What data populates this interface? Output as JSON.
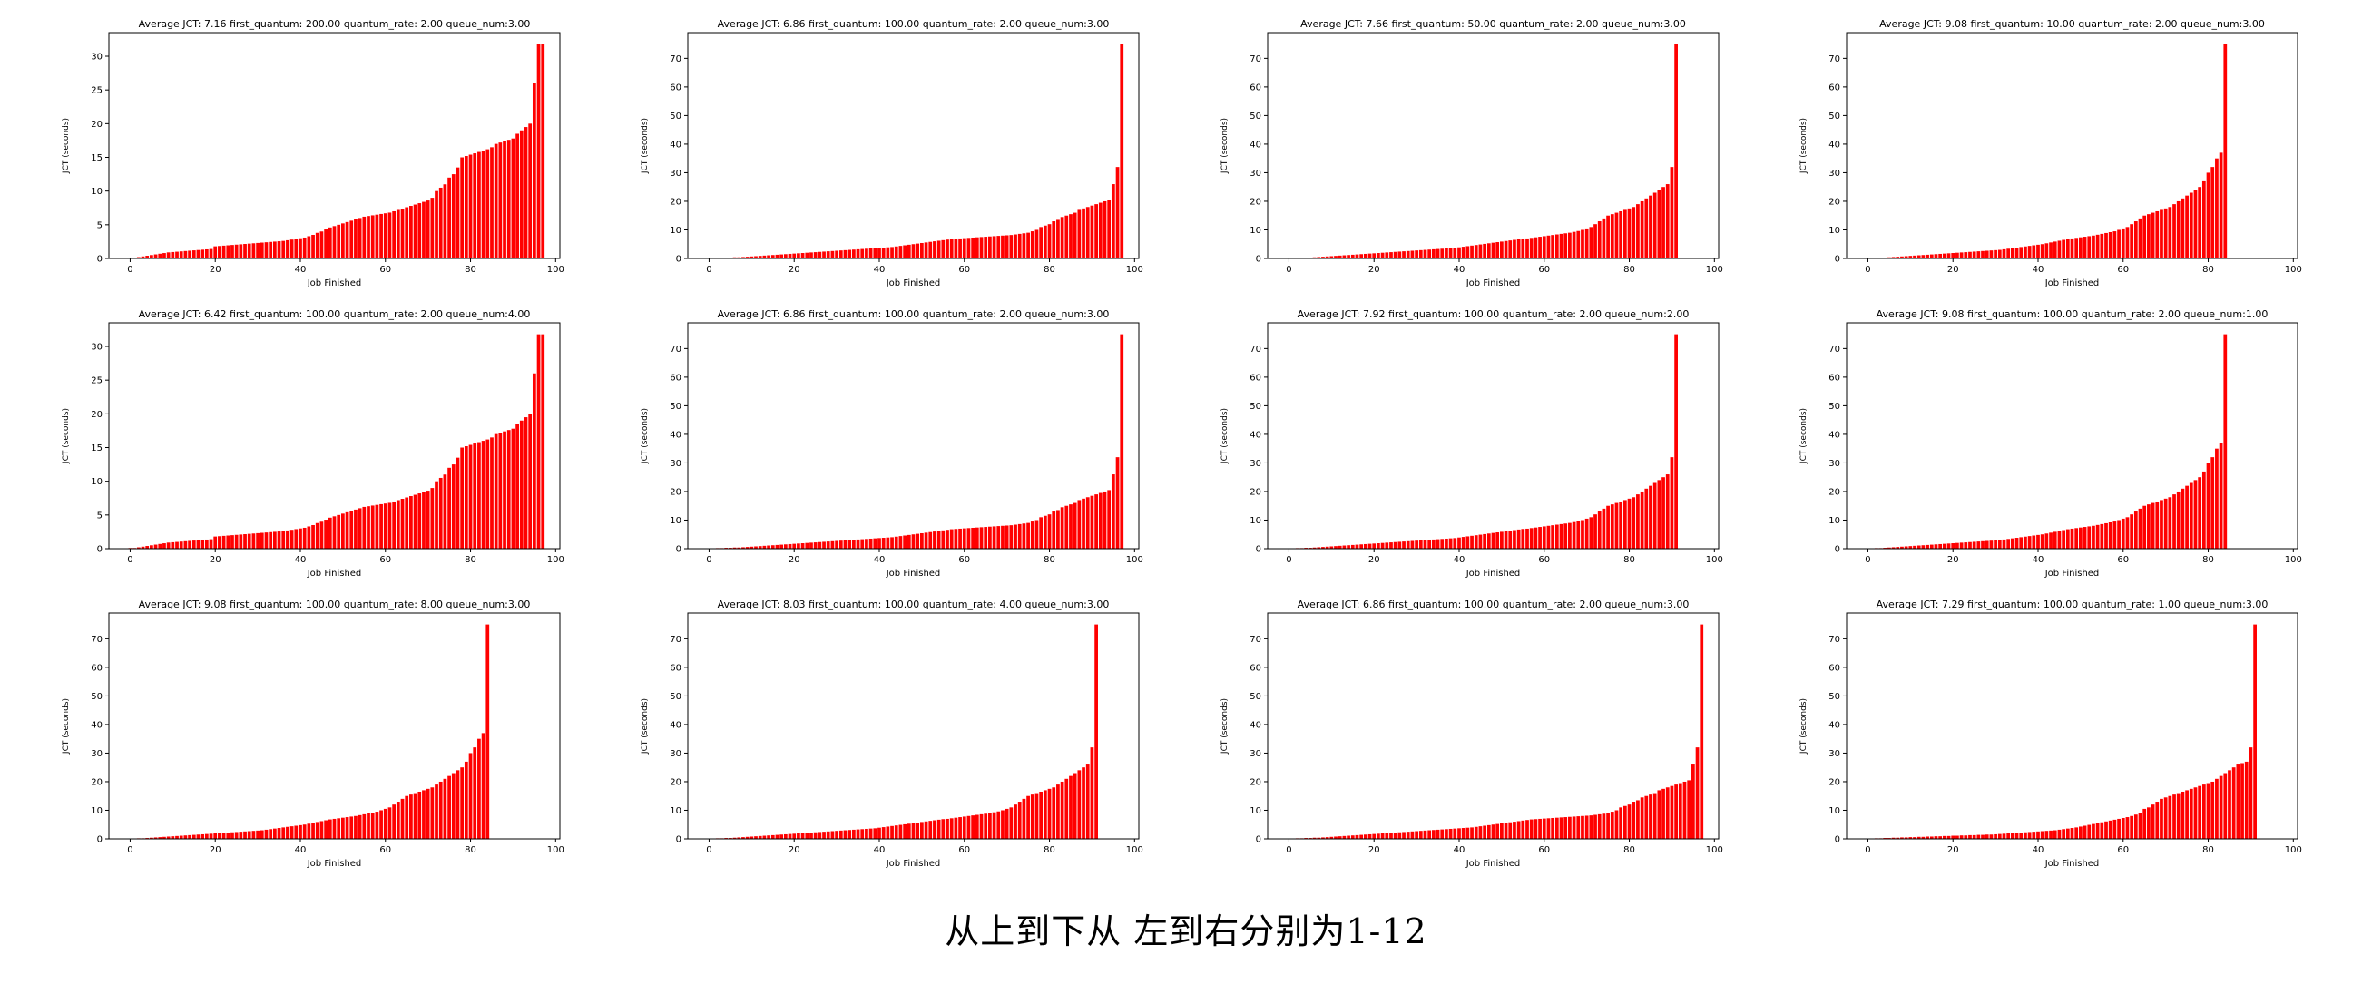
{
  "caption": "从上到下从 左到右分别为1-12",
  "colors": {
    "bar": "#ff0000",
    "axes": "#000000",
    "background": "#ffffff"
  },
  "chart_data": [
    {
      "type": "bar",
      "title": "Average JCT: 7.16 first_quantum: 200.00 quantum_rate: 2.00 queue_num:3.00",
      "xlabel": "Job Finished",
      "ylabel": "JCT (seconds)",
      "xlim": [
        -5,
        101
      ],
      "ylim": [
        0,
        33.5
      ],
      "yticks": [
        0,
        5,
        10,
        15,
        20,
        25,
        30
      ],
      "xticks": [
        0,
        20,
        40,
        60,
        80,
        100
      ],
      "profile": "A"
    },
    {
      "type": "bar",
      "title": "Average JCT: 6.86 first_quantum: 100.00 quantum_rate: 2.00 queue_num:3.00",
      "xlabel": "Job Finished",
      "ylabel": "JCT (seconds)",
      "xlim": [
        -5,
        101
      ],
      "ylim": [
        0,
        79
      ],
      "yticks": [
        0,
        10,
        20,
        30,
        40,
        50,
        60,
        70
      ],
      "xticks": [
        0,
        20,
        40,
        60,
        80,
        100
      ],
      "profile": "B"
    },
    {
      "type": "bar",
      "title": "Average JCT: 7.66 first_quantum: 50.00 quantum_rate: 2.00 queue_num:3.00",
      "xlabel": "Job Finished",
      "ylabel": "JCT (seconds)",
      "xlim": [
        -5,
        101
      ],
      "ylim": [
        0,
        79
      ],
      "yticks": [
        0,
        10,
        20,
        30,
        40,
        50,
        60,
        70
      ],
      "xticks": [
        0,
        20,
        40,
        60,
        80,
        100
      ],
      "profile": "C"
    },
    {
      "type": "bar",
      "title": "Average JCT: 9.08 first_quantum: 10.00 quantum_rate: 2.00 queue_num:3.00",
      "xlabel": "Job Finished",
      "ylabel": "JCT (seconds)",
      "xlim": [
        -5,
        101
      ],
      "ylim": [
        0,
        79
      ],
      "yticks": [
        0,
        10,
        20,
        30,
        40,
        50,
        60,
        70
      ],
      "xticks": [
        0,
        20,
        40,
        60,
        80,
        100
      ],
      "profile": "D"
    },
    {
      "type": "bar",
      "title": "Average JCT: 6.42 first_quantum: 100.00 quantum_rate: 2.00 queue_num:4.00",
      "xlabel": "Job Finished",
      "ylabel": "JCT (seconds)",
      "xlim": [
        -5,
        101
      ],
      "ylim": [
        0,
        33.5
      ],
      "yticks": [
        0,
        5,
        10,
        15,
        20,
        25,
        30
      ],
      "xticks": [
        0,
        20,
        40,
        60,
        80,
        100
      ],
      "profile": "A"
    },
    {
      "type": "bar",
      "title": "Average JCT: 6.86 first_quantum: 100.00 quantum_rate: 2.00 queue_num:3.00",
      "xlabel": "Job Finished",
      "ylabel": "JCT (seconds)",
      "xlim": [
        -5,
        101
      ],
      "ylim": [
        0,
        79
      ],
      "yticks": [
        0,
        10,
        20,
        30,
        40,
        50,
        60,
        70
      ],
      "xticks": [
        0,
        20,
        40,
        60,
        80,
        100
      ],
      "profile": "B"
    },
    {
      "type": "bar",
      "title": "Average JCT: 7.92 first_quantum: 100.00 quantum_rate: 2.00 queue_num:2.00",
      "xlabel": "Job Finished",
      "ylabel": "JCT (seconds)",
      "xlim": [
        -5,
        101
      ],
      "ylim": [
        0,
        79
      ],
      "yticks": [
        0,
        10,
        20,
        30,
        40,
        50,
        60,
        70
      ],
      "xticks": [
        0,
        20,
        40,
        60,
        80,
        100
      ],
      "profile": "C"
    },
    {
      "type": "bar",
      "title": "Average JCT: 9.08 first_quantum: 100.00 quantum_rate: 2.00 queue_num:1.00",
      "xlabel": "Job Finished",
      "ylabel": "JCT (seconds)",
      "xlim": [
        -5,
        101
      ],
      "ylim": [
        0,
        79
      ],
      "yticks": [
        0,
        10,
        20,
        30,
        40,
        50,
        60,
        70
      ],
      "xticks": [
        0,
        20,
        40,
        60,
        80,
        100
      ],
      "profile": "D"
    },
    {
      "type": "bar",
      "title": "Average JCT: 9.08 first_quantum: 100.00 quantum_rate: 8.00 queue_num:3.00",
      "xlabel": "Job Finished",
      "ylabel": "JCT (seconds)",
      "xlim": [
        -5,
        101
      ],
      "ylim": [
        0,
        79
      ],
      "yticks": [
        0,
        10,
        20,
        30,
        40,
        50,
        60,
        70
      ],
      "xticks": [
        0,
        20,
        40,
        60,
        80,
        100
      ],
      "profile": "D"
    },
    {
      "type": "bar",
      "title": "Average JCT: 8.03 first_quantum: 100.00 quantum_rate: 4.00 queue_num:3.00",
      "xlabel": "Job Finished",
      "ylabel": "JCT (seconds)",
      "xlim": [
        -5,
        101
      ],
      "ylim": [
        0,
        79
      ],
      "yticks": [
        0,
        10,
        20,
        30,
        40,
        50,
        60,
        70
      ],
      "xticks": [
        0,
        20,
        40,
        60,
        80,
        100
      ],
      "profile": "C"
    },
    {
      "type": "bar",
      "title": "Average JCT: 6.86 first_quantum: 100.00 quantum_rate: 2.00 queue_num:3.00",
      "xlabel": "Job Finished",
      "ylabel": "JCT (seconds)",
      "xlim": [
        -5,
        101
      ],
      "ylim": [
        0,
        79
      ],
      "yticks": [
        0,
        10,
        20,
        30,
        40,
        50,
        60,
        70
      ],
      "xticks": [
        0,
        20,
        40,
        60,
        80,
        100
      ],
      "profile": "B"
    },
    {
      "type": "bar",
      "title": "Average JCT: 7.29 first_quantum: 100.00 quantum_rate: 1.00 queue_num:3.00",
      "xlabel": "Job Finished",
      "ylabel": "JCT (seconds)",
      "xlim": [
        -5,
        101
      ],
      "ylim": [
        0,
        79
      ],
      "yticks": [
        0,
        10,
        20,
        30,
        40,
        50,
        60,
        70
      ],
      "xticks": [
        0,
        20,
        40,
        60,
        80,
        100
      ],
      "profile": "E"
    }
  ],
  "profiles": {
    "A": [
      0.1,
      0.1,
      0.2,
      0.3,
      0.4,
      0.5,
      0.6,
      0.7,
      0.8,
      0.9,
      0.95,
      1.0,
      1.05,
      1.1,
      1.15,
      1.2,
      1.25,
      1.3,
      1.35,
      1.4,
      1.8,
      1.85,
      1.9,
      1.95,
      2.0,
      2.05,
      2.1,
      2.15,
      2.2,
      2.25,
      2.3,
      2.35,
      2.4,
      2.45,
      2.5,
      2.55,
      2.6,
      2.7,
      2.8,
      2.9,
      3.0,
      3.1,
      3.3,
      3.5,
      3.8,
      4.0,
      4.3,
      4.6,
      4.8,
      5.0,
      5.2,
      5.4,
      5.6,
      5.8,
      6.0,
      6.2,
      6.3,
      6.4,
      6.5,
      6.6,
      6.7,
      6.8,
      7.0,
      7.2,
      7.4,
      7.6,
      7.8,
      8.0,
      8.2,
      8.4,
      8.6,
      9.0,
      10.0,
      10.5,
      11.0,
      12.0,
      12.5,
      13.5,
      15.0,
      15.2,
      15.4,
      15.6,
      15.8,
      16.0,
      16.2,
      16.5,
      17.0,
      17.2,
      17.4,
      17.6,
      17.8,
      18.5,
      19.0,
      19.5,
      20.0,
      26.0,
      31.8,
      31.8
    ],
    "B": [
      0.1,
      0.1,
      0.2,
      0.2,
      0.3,
      0.3,
      0.4,
      0.4,
      0.5,
      0.6,
      0.7,
      0.8,
      0.9,
      1.0,
      1.1,
      1.2,
      1.3,
      1.4,
      1.5,
      1.6,
      1.7,
      1.8,
      1.9,
      2.0,
      2.1,
      2.2,
      2.3,
      2.4,
      2.5,
      2.6,
      2.7,
      2.8,
      2.9,
      3.0,
      3.1,
      3.2,
      3.3,
      3.4,
      3.5,
      3.6,
      3.7,
      3.8,
      3.9,
      4.0,
      4.2,
      4.4,
      4.6,
      4.8,
      5.0,
      5.2,
      5.4,
      5.6,
      5.8,
      6.0,
      6.2,
      6.4,
      6.6,
      6.8,
      6.9,
      7.0,
      7.1,
      7.2,
      7.3,
      7.4,
      7.5,
      7.6,
      7.7,
      7.8,
      7.9,
      8.0,
      8.1,
      8.2,
      8.4,
      8.6,
      8.8,
      9.0,
      9.5,
      10.0,
      11.0,
      11.5,
      12.0,
      13.0,
      13.5,
      14.5,
      15.0,
      15.5,
      16.0,
      17.0,
      17.5,
      18.0,
      18.5,
      19.0,
      19.5,
      20.0,
      20.5,
      26.0,
      32.0,
      75.0
    ],
    "C": [
      0.1,
      0.1,
      0.2,
      0.2,
      0.3,
      0.3,
      0.4,
      0.5,
      0.6,
      0.7,
      0.8,
      0.9,
      1.0,
      1.1,
      1.2,
      1.3,
      1.4,
      1.5,
      1.6,
      1.7,
      1.8,
      1.9,
      2.0,
      2.1,
      2.2,
      2.3,
      2.4,
      2.5,
      2.6,
      2.7,
      2.8,
      2.9,
      3.0,
      3.1,
      3.2,
      3.3,
      3.4,
      3.5,
      3.6,
      3.7,
      3.9,
      4.1,
      4.3,
      4.5,
      4.7,
      4.9,
      5.1,
      5.3,
      5.5,
      5.7,
      5.9,
      6.1,
      6.3,
      6.5,
      6.7,
      6.9,
      7.0,
      7.2,
      7.4,
      7.6,
      7.8,
      8.0,
      8.2,
      8.4,
      8.6,
      8.8,
      9.0,
      9.3,
      9.6,
      10.0,
      10.5,
      11.0,
      12.0,
      13.0,
      14.0,
      15.0,
      15.5,
      16.0,
      16.5,
      17.0,
      17.5,
      18.0,
      19.0,
      20.0,
      21.0,
      22.0,
      23.0,
      24.0,
      25.0,
      26.0,
      32.0,
      75.0
    ],
    "D": [
      0.1,
      0.1,
      0.2,
      0.2,
      0.3,
      0.4,
      0.5,
      0.6,
      0.7,
      0.8,
      0.9,
      1.0,
      1.1,
      1.2,
      1.3,
      1.4,
      1.5,
      1.6,
      1.7,
      1.8,
      1.9,
      2.0,
      2.1,
      2.2,
      2.3,
      2.4,
      2.5,
      2.6,
      2.7,
      2.8,
      2.9,
      3.0,
      3.2,
      3.4,
      3.6,
      3.8,
      4.0,
      4.2,
      4.4,
      4.6,
      4.8,
      5.0,
      5.3,
      5.6,
      5.9,
      6.2,
      6.5,
      6.8,
      7.0,
      7.2,
      7.4,
      7.6,
      7.8,
      8.0,
      8.3,
      8.6,
      8.9,
      9.2,
      9.5,
      10.0,
      10.5,
      11.0,
      12.0,
      13.0,
      14.0,
      15.0,
      15.5,
      16.0,
      16.5,
      17.0,
      17.5,
      18.0,
      19.0,
      20.0,
      21.0,
      22.0,
      23.0,
      24.0,
      25.0,
      27.0,
      30.0,
      32.0,
      35.0,
      37.0,
      75.0
    ],
    "E": [
      0.1,
      0.1,
      0.2,
      0.2,
      0.3,
      0.3,
      0.4,
      0.4,
      0.5,
      0.5,
      0.6,
      0.6,
      0.7,
      0.7,
      0.8,
      0.8,
      0.9,
      0.9,
      1.0,
      1.0,
      1.1,
      1.1,
      1.2,
      1.2,
      1.3,
      1.3,
      1.4,
      1.4,
      1.5,
      1.5,
      1.6,
      1.7,
      1.8,
      1.9,
      2.0,
      2.1,
      2.2,
      2.3,
      2.4,
      2.5,
      2.6,
      2.7,
      2.8,
      2.9,
      3.0,
      3.2,
      3.4,
      3.6,
      3.8,
      4.0,
      4.3,
      4.6,
      4.9,
      5.2,
      5.5,
      5.8,
      6.1,
      6.4,
      6.7,
      7.0,
      7.3,
      7.6,
      8.0,
      8.5,
      9.0,
      10.5,
      11.0,
      12.0,
      13.0,
      14.0,
      14.5,
      15.0,
      15.5,
      16.0,
      16.5,
      17.0,
      17.5,
      18.0,
      18.5,
      19.0,
      19.5,
      20.0,
      21.0,
      22.0,
      23.0,
      24.0,
      25.0,
      26.0,
      26.5,
      27.0,
      32.0,
      75.0
    ]
  }
}
